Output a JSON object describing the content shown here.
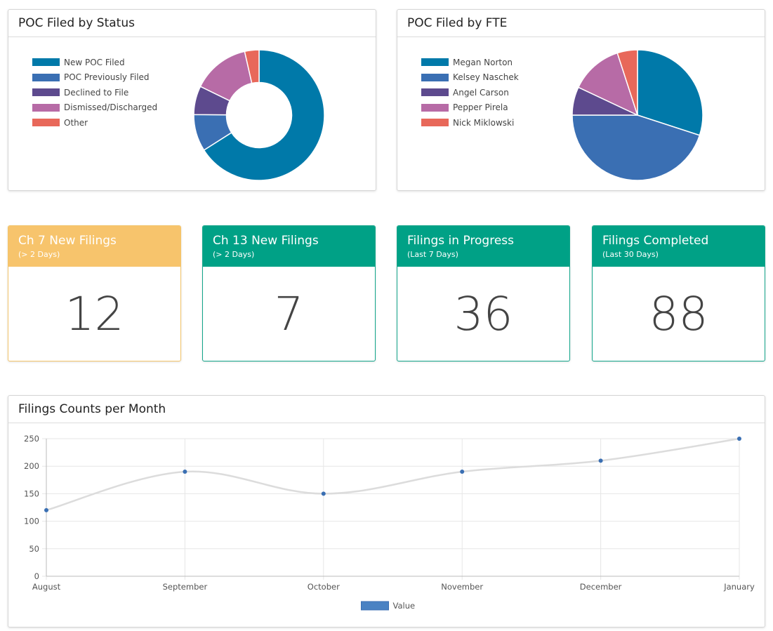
{
  "status_panel": {
    "title": "POC Filed by Status"
  },
  "fte_panel": {
    "title": "POC Filed by FTE"
  },
  "stats": [
    {
      "title": "Ch 7 New Filings",
      "subtitle": "(> 2 Days)",
      "value": "12",
      "color": "#f7c46c"
    },
    {
      "title": "Ch 13 New Filings",
      "subtitle": "(> 2 Days)",
      "value": "7",
      "color": "#00a186"
    },
    {
      "title": "Filings in Progress",
      "subtitle": "(Last 7 Days)",
      "value": "36",
      "color": "#00a186"
    },
    {
      "title": "Filings Completed",
      "subtitle": "(Last 30 Days)",
      "value": "88",
      "color": "#00a186"
    }
  ],
  "line_panel": {
    "title": "Filings Counts per Month"
  },
  "chart_data": [
    {
      "type": "pie",
      "variant": "doughnut",
      "categories": [
        "New POC Filed",
        "POC Previously Filed",
        "Declined to File",
        "Dismissed/Discharged",
        "Other"
      ],
      "values": [
        65,
        9,
        7,
        14,
        3.5
      ],
      "colors": [
        "#0079a9",
        "#3a6fb3",
        "#5d4a8e",
        "#b76ba6",
        "#e8685a"
      ],
      "legend": "left"
    },
    {
      "type": "pie",
      "categories": [
        "Megan Norton",
        "Kelsey Naschek",
        "Angel Carson",
        "Pepper Pirela",
        "Nick Miklowski"
      ],
      "values": [
        30,
        45,
        7,
        13,
        5
      ],
      "colors": [
        "#0079a9",
        "#3a6fb3",
        "#5d4a8e",
        "#b76ba6",
        "#e8685a"
      ],
      "legend": "left"
    },
    {
      "type": "line",
      "categories": [
        "August",
        "September",
        "October",
        "November",
        "December",
        "January"
      ],
      "series": [
        {
          "name": "Value",
          "values": [
            120,
            190,
            150,
            190,
            210,
            250
          ]
        }
      ],
      "yticks": [
        0,
        50,
        100,
        150,
        200,
        250
      ],
      "ylim": [
        0,
        250
      ],
      "grid": true,
      "legend": "bottom",
      "line_color": "#dcdcdc",
      "point_color": "#3a6fb3",
      "legend_color": "#4a82c3"
    }
  ]
}
